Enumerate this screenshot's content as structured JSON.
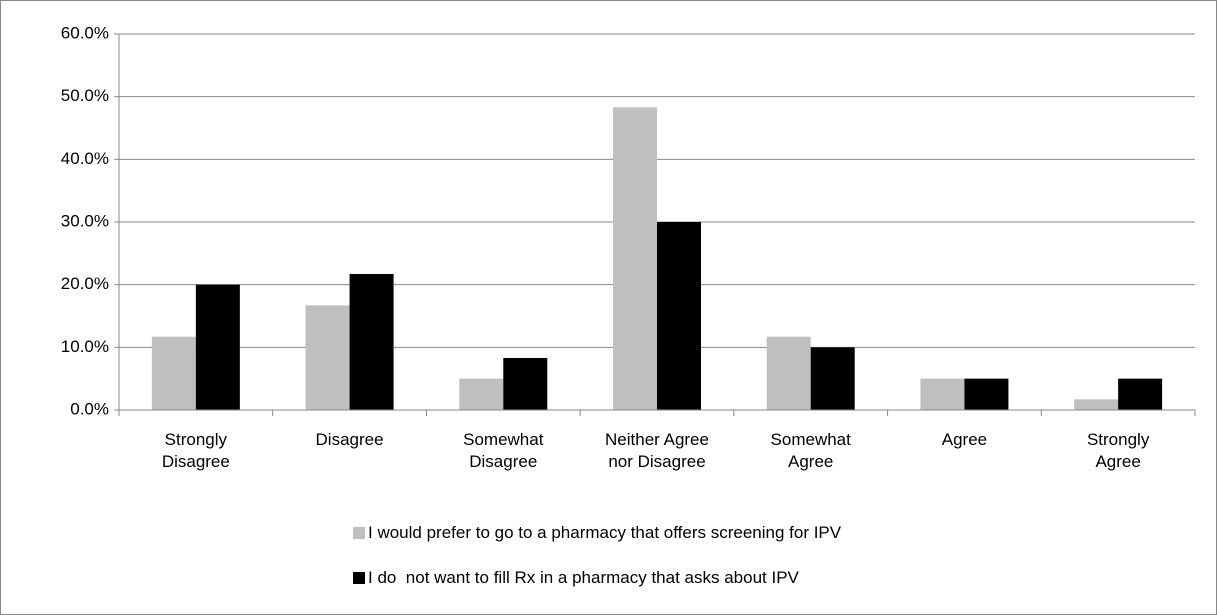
{
  "chart_data": {
    "type": "bar",
    "categories": [
      "Strongly\nDisagree",
      "Disagree",
      "Somewhat\nDisagree",
      "Neither Agree\nnor Disagree",
      "Somewhat\nAgree",
      "Agree",
      "Strongly\nAgree"
    ],
    "series": [
      {
        "name": "I would prefer to go to a pharmacy that offers screening for IPV",
        "color": "#bfbfbf",
        "values": [
          11.7,
          16.7,
          5.0,
          48.3,
          11.7,
          5.0,
          1.7
        ]
      },
      {
        "name": "I do  not want to fill Rx in a pharmacy that asks about IPV",
        "color": "#000000",
        "values": [
          20.0,
          21.7,
          8.3,
          30.0,
          10.0,
          5.0,
          5.0
        ]
      }
    ],
    "ylim": [
      0,
      60
    ],
    "yticks": [
      {
        "value": 0,
        "label": "0.0%"
      },
      {
        "value": 10,
        "label": "10.0%"
      },
      {
        "value": 20,
        "label": "20.0%"
      },
      {
        "value": 30,
        "label": "30.0%"
      },
      {
        "value": 40,
        "label": "40.0%"
      },
      {
        "value": 50,
        "label": "50.0%"
      },
      {
        "value": 60,
        "label": "60.0%"
      }
    ],
    "grid": true
  }
}
